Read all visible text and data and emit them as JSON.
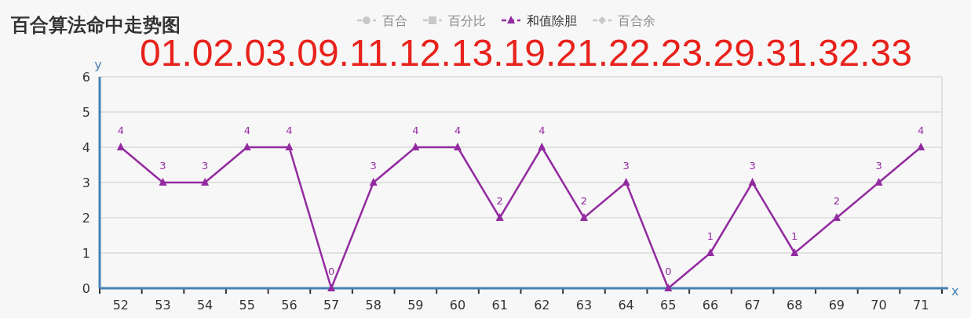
{
  "chart_data": {
    "type": "line",
    "title": "百合算法命中走势图",
    "subtitle": "01.02.03.09.11.12.13.19.21.22.23.29.31.32.33",
    "xlabel": "x",
    "ylabel": "y",
    "categories": [
      "52",
      "53",
      "54",
      "55",
      "56",
      "57",
      "58",
      "59",
      "60",
      "61",
      "62",
      "63",
      "64",
      "65",
      "66",
      "67",
      "68",
      "69",
      "70",
      "71"
    ],
    "series": [
      {
        "name": "百合",
        "color": "#c8c8c8",
        "marker": "circle",
        "values": [
          null,
          null,
          null,
          null,
          null,
          null,
          null,
          null,
          null,
          null,
          null,
          null,
          null,
          null,
          null,
          null,
          null,
          null,
          null,
          null
        ]
      },
      {
        "name": "百分比",
        "color": "#c8c8c8",
        "marker": "square",
        "values": [
          null,
          null,
          null,
          null,
          null,
          null,
          null,
          null,
          null,
          null,
          null,
          null,
          null,
          null,
          null,
          null,
          null,
          null,
          null,
          null
        ]
      },
      {
        "name": "和值除胆",
        "color": "#932ba0",
        "marker": "triangle",
        "values": [
          4,
          3,
          3,
          4,
          4,
          0,
          3,
          4,
          4,
          2,
          4,
          2,
          3,
          0,
          1,
          3,
          1,
          2,
          3,
          4
        ]
      },
      {
        "name": "百合余",
        "color": "#c8c8c8",
        "marker": "diamond",
        "values": [
          null,
          null,
          null,
          null,
          null,
          null,
          null,
          null,
          null,
          null,
          null,
          null,
          null,
          null,
          null,
          null,
          null,
          null,
          null,
          null
        ]
      }
    ],
    "ylim": [
      0,
      6
    ],
    "yticks": [
      0,
      1,
      2,
      3,
      4,
      5,
      6
    ],
    "grid": "y",
    "legend": "top",
    "data_labels": true
  }
}
